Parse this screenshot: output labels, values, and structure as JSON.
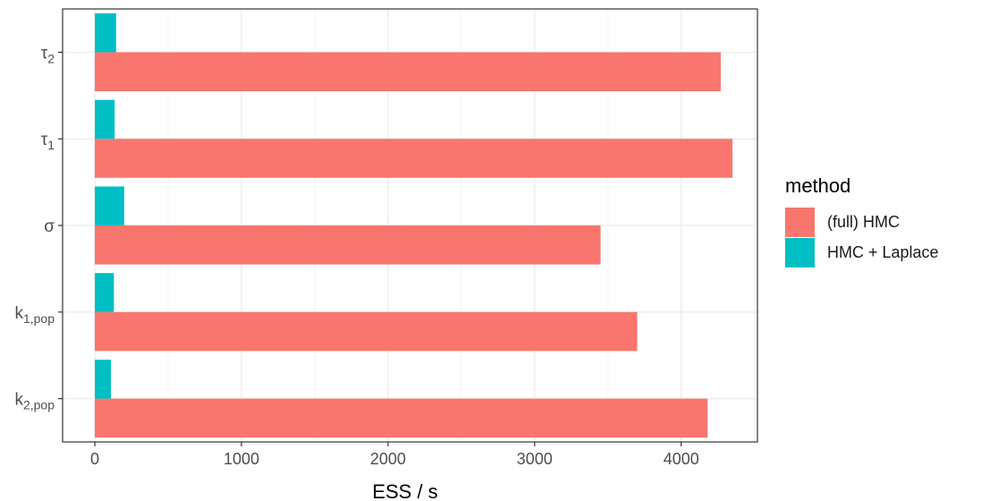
{
  "chart_data": {
    "type": "bar",
    "orientation": "horizontal",
    "categories": [
      "k_2,pop",
      "k_1,pop",
      "σ",
      "τ_1",
      "τ_2"
    ],
    "category_labels": [
      {
        "base": "k",
        "sub": "2,pop"
      },
      {
        "base": "k",
        "sub": "1,pop"
      },
      {
        "base": "σ",
        "sub": ""
      },
      {
        "base": "τ",
        "sub": "1"
      },
      {
        "base": "τ",
        "sub": "2"
      }
    ],
    "series": [
      {
        "name": "(full) HMC",
        "color": "#F8766D",
        "values": [
          4180,
          3700,
          3450,
          4350,
          4270
        ]
      },
      {
        "name": "HMC + Laplace",
        "color": "#00BFC4",
        "values": [
          110,
          130,
          200,
          135,
          145
        ]
      }
    ],
    "xlabel": "ESS / s",
    "ylabel": "",
    "xlim": [
      -220,
      4520
    ],
    "xticks": [
      0,
      1000,
      2000,
      3000,
      4000
    ],
    "xtick_labels": [
      "0",
      "1000",
      "2000",
      "3000",
      "4000"
    ],
    "grid": true,
    "legend": {
      "title": "method",
      "position": "right"
    }
  }
}
